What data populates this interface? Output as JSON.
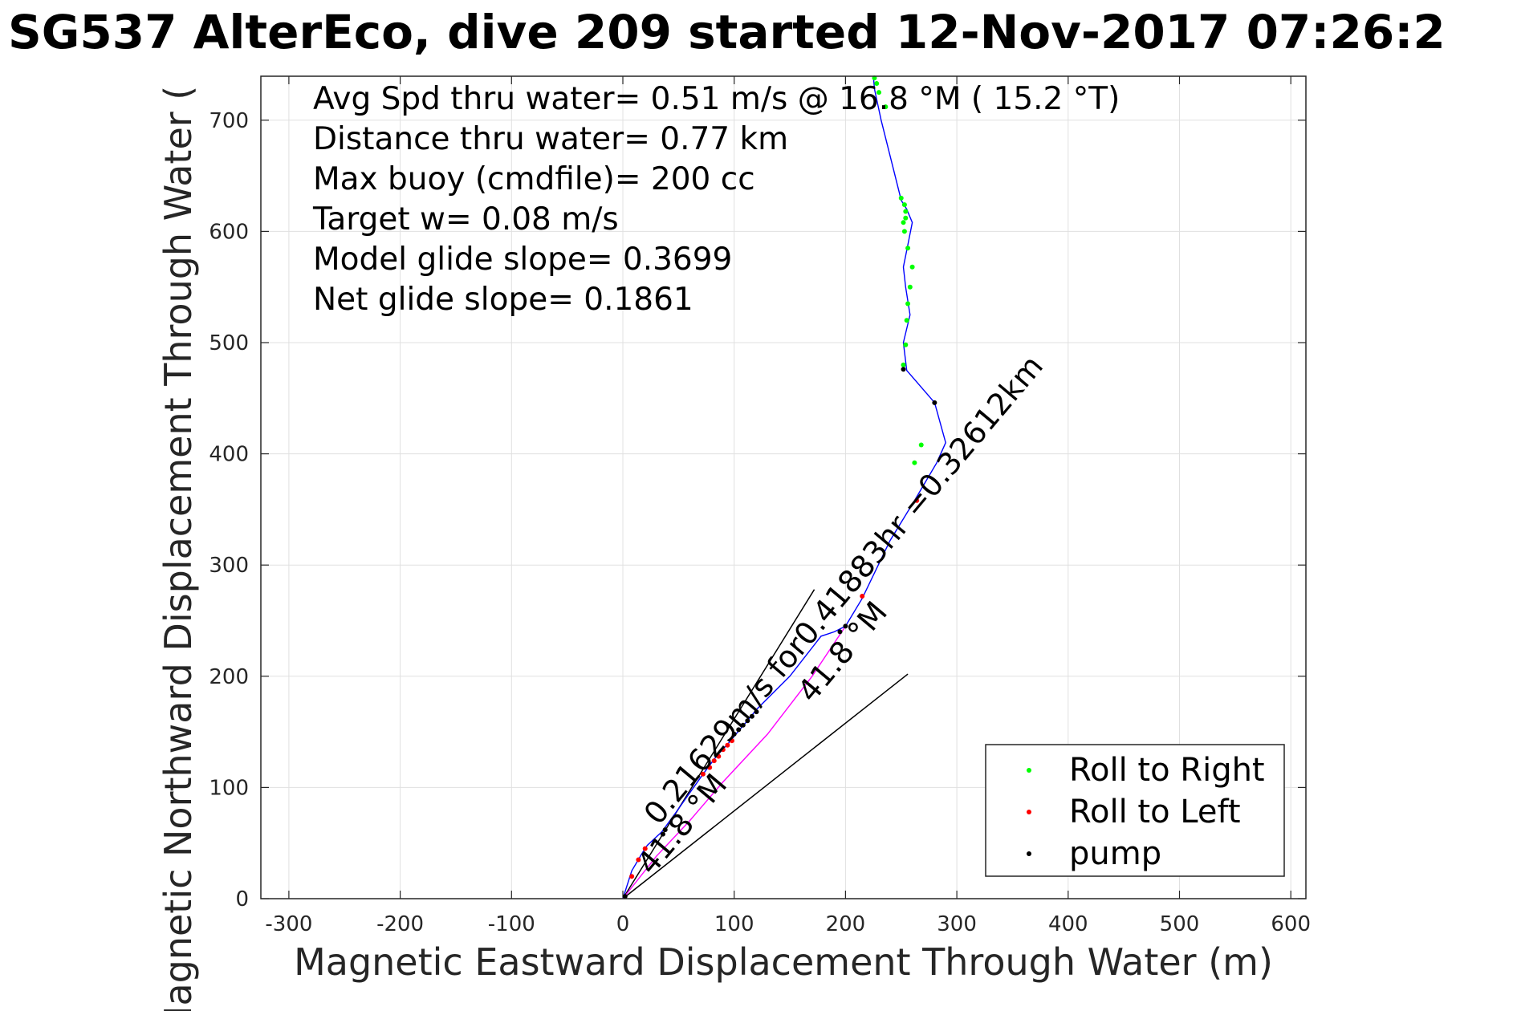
{
  "chart_data": {
    "type": "line",
    "title": "SG537 AlterEco, dive 209 started 12-Nov-2017 07:26:2",
    "xlabel": "Magnetic Eastward Displacement Through Water (m)",
    "ylabel": "Magnetic Northward Displacement Through Water (",
    "xlim": [
      -300,
      600
    ],
    "ylim": [
      0,
      740
    ],
    "xticks": [
      -300,
      -200,
      -100,
      0,
      100,
      200,
      300,
      400,
      500,
      600
    ],
    "yticks": [
      0,
      100,
      200,
      300,
      400,
      500,
      600,
      700
    ],
    "grid": true,
    "legend_position": "bottom-right",
    "colors": {
      "track": "#0000ff",
      "roll_right": "#00ff00",
      "roll_left": "#ff0000",
      "pump": "#000000",
      "depth_track": "#ff00ff"
    },
    "annotations": [
      "Avg Spd thru water=  0.51 m/s @  16.8 °M ( 15.2 °T)",
      "Distance thru water=  0.77 km",
      "Max buoy (cmdfile)= 200 cc",
      "Target w= 0.08 m/s",
      "Model glide slope= 0.3699",
      "Net glide slope= 0.1861"
    ],
    "rotated_labels": [
      {
        "text": "0.21629m/s for0.41883hr =0.32612km",
        "x": 32,
        "y": 65
      },
      {
        "text": "41.8 °M",
        "x": 26,
        "y": 20
      },
      {
        "text": "41.8 °M",
        "x": 170,
        "y": 175
      }
    ],
    "lines": [
      {
        "x": [
          0,
          172
        ],
        "y": [
          0,
          278
        ]
      },
      {
        "x": [
          0,
          256
        ],
        "y": [
          0,
          202
        ]
      }
    ],
    "series": [
      {
        "name": "track",
        "x": [
          0,
          8,
          18,
          22,
          35,
          48,
          60,
          72,
          84,
          95,
          105,
          112,
          120,
          150,
          178,
          190,
          200,
          215,
          240,
          262,
          282,
          290,
          280,
          255,
          252,
          258,
          254,
          252,
          256,
          260,
          255,
          250,
          242,
          232,
          226,
          225
        ],
        "y": [
          0,
          25,
          42,
          48,
          60,
          78,
          95,
          112,
          128,
          140,
          152,
          160,
          170,
          200,
          236,
          240,
          245,
          270,
          322,
          358,
          392,
          410,
          446,
          475,
          500,
          525,
          550,
          568,
          588,
          608,
          620,
          628,
          660,
          700,
          728,
          740
        ]
      },
      {
        "name": "depth track",
        "x": [
          0,
          30,
          60,
          90,
          130,
          170,
          200
        ],
        "y": [
          0,
          38,
          70,
          105,
          148,
          200,
          245
        ]
      },
      {
        "name": "Roll to Right",
        "x": [
          252,
          254,
          255,
          256,
          258,
          260,
          256,
          253,
          252,
          254,
          254,
          253,
          262,
          268,
          250,
          226,
          228,
          230,
          236
        ],
        "y": [
          480,
          498,
          520,
          535,
          550,
          568,
          585,
          600,
          608,
          612,
          618,
          624,
          392,
          408,
          630,
          738,
          733,
          725,
          712
        ]
      },
      {
        "name": "Roll to Left",
        "x": [
          8,
          14,
          20,
          72,
          78,
          82,
          86,
          90,
          94,
          98,
          215,
          264
        ],
        "y": [
          20,
          35,
          45,
          112,
          118,
          124,
          128,
          134,
          138,
          142,
          272,
          358
        ]
      },
      {
        "name": "pump",
        "x": [
          2,
          36,
          38,
          100,
          104,
          108,
          112,
          116,
          120,
          280,
          252,
          200,
          195
        ],
        "y": [
          2,
          58,
          62,
          148,
          152,
          156,
          160,
          164,
          168,
          446,
          476,
          245,
          240
        ]
      }
    ],
    "legend": [
      {
        "label": "Roll to Right",
        "key": "roll_right"
      },
      {
        "label": "Roll to Left",
        "key": "roll_left"
      },
      {
        "label": "pump",
        "key": "pump"
      }
    ]
  }
}
